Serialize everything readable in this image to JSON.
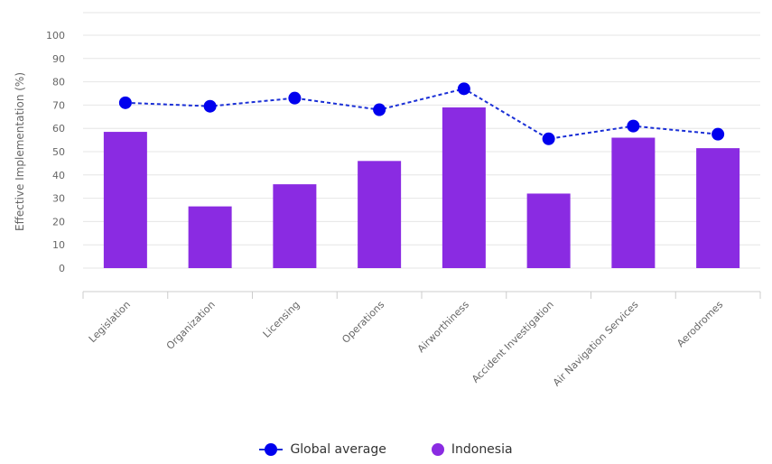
{
  "chart_data": {
    "type": "bar",
    "ylabel": "Effective Implementation (%)",
    "ylim": [
      0,
      100
    ],
    "yticks": [
      0,
      10,
      20,
      30,
      40,
      50,
      60,
      70,
      80,
      90,
      100
    ],
    "categories": [
      "Legislation",
      "Organization",
      "Licensing",
      "Operations",
      "Airworthiness",
      "Accident Investigation",
      "Air Navigation Services",
      "Aerodromes"
    ],
    "series": [
      {
        "name": "Indonesia",
        "type": "bar",
        "color": "#8a2be2",
        "values": [
          58.5,
          26.5,
          36,
          46,
          69,
          32,
          56,
          51.5
        ]
      },
      {
        "name": "Global average",
        "type": "line",
        "color": "#0000ee",
        "values": [
          71,
          69.5,
          73,
          68,
          77,
          55.5,
          61,
          57.5
        ]
      }
    ],
    "grid": true,
    "legend": "bottom-center"
  }
}
